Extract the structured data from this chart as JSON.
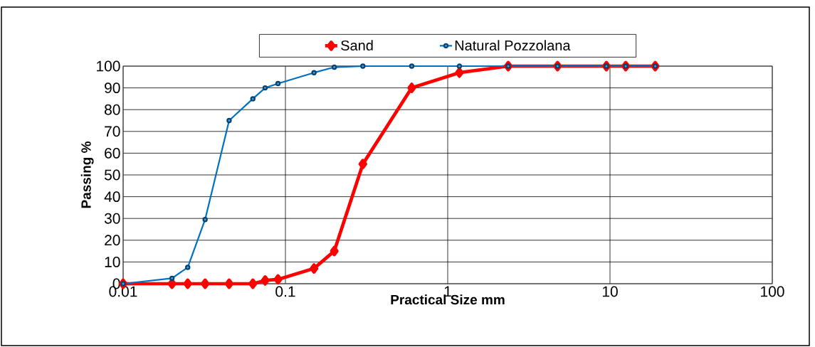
{
  "chart_data": {
    "type": "line",
    "xlabel": "Practical Size   mm",
    "ylabel": "Passing %",
    "x": [
      0.01,
      0.02,
      0.025,
      0.032,
      0.045,
      0.063,
      0.075,
      0.09,
      0.15,
      0.2,
      0.3,
      0.6,
      1.18,
      2.36,
      4.75,
      9.5,
      12.5,
      19
    ],
    "series": [
      {
        "name": "Sand",
        "color": "#ff0000",
        "marker": "diamond",
        "values": [
          0,
          0,
          0,
          0,
          0,
          0,
          1.5,
          2,
          7,
          15,
          55,
          90,
          97,
          100,
          100,
          100,
          100,
          100
        ]
      },
      {
        "name": "Natural Pozzolana",
        "color": "#0070c0",
        "marker": "circle",
        "values": [
          0,
          2.5,
          7.5,
          29.5,
          75,
          85,
          90,
          92,
          97,
          99.5,
          100,
          100,
          100,
          100,
          100,
          100,
          100,
          100
        ]
      }
    ],
    "log": "x",
    "xlim": [
      0.01,
      100
    ],
    "xticks": [
      0.01,
      0.1,
      1,
      10,
      100
    ],
    "ylim": [
      0,
      100
    ],
    "yticks": [
      0,
      10,
      20,
      30,
      40,
      50,
      60,
      70,
      80,
      90,
      100
    ],
    "grid": true,
    "legend": "top",
    "line_style": "solid"
  }
}
